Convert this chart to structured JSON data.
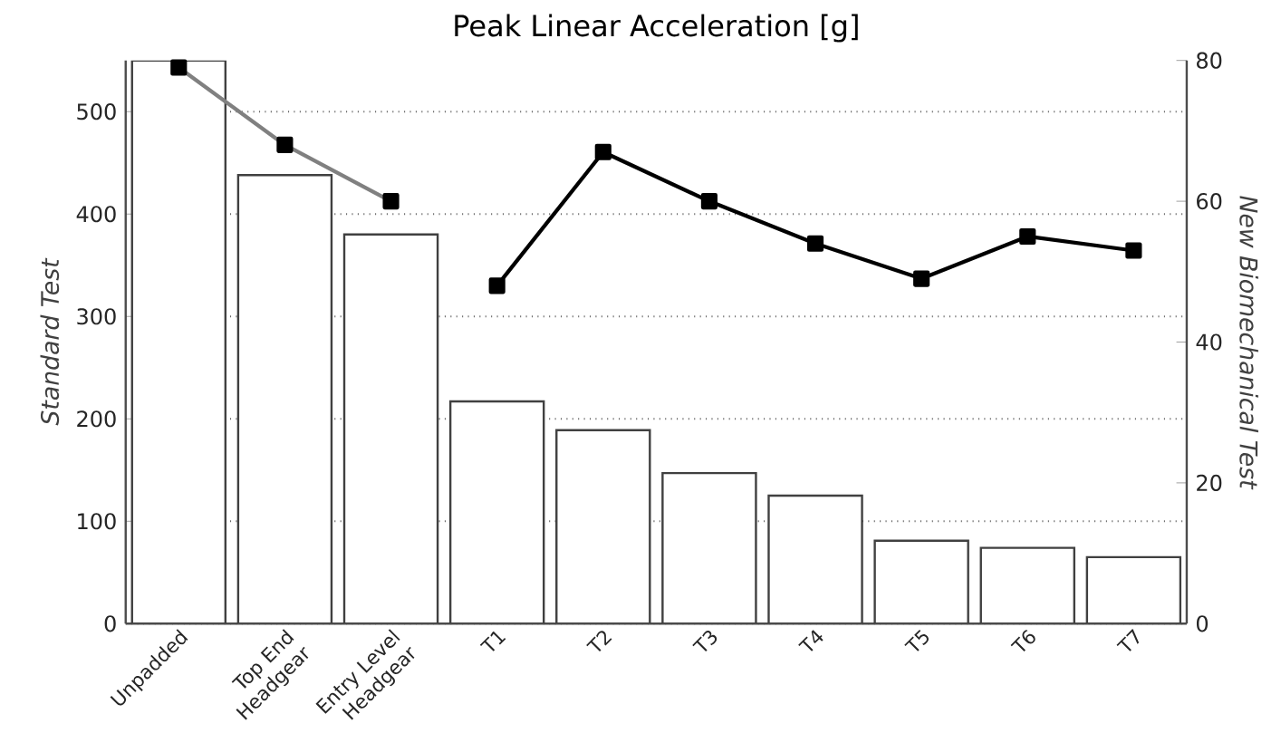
{
  "chart_data": {
    "type": "bar",
    "title": "Peak Linear Acceleration [g]",
    "ylabel": "Standard Test",
    "y2label": "New Biomechanical Test",
    "categories": [
      "Unpadded",
      "Top End Headgear",
      "Entry Level Headgear",
      "T1",
      "T2",
      "T3",
      "T4",
      "T5",
      "T6",
      "T7"
    ],
    "series": [
      {
        "color": "#ffffff",
        "values": [
          550,
          438,
          380,
          217,
          189,
          147,
          125,
          81,
          74,
          65
        ]
      },
      {
        "type": "line",
        "axis": "y2",
        "color": "#808080",
        "values": [
          79,
          68,
          60,
          null,
          null,
          null,
          null,
          null,
          null,
          null
        ]
      },
      {
        "type": "line",
        "axis": "y2",
        "color": "#000000",
        "values": [
          null,
          null,
          null,
          48,
          67,
          60,
          54,
          49,
          55,
          53
        ]
      }
    ],
    "ylim": [
      0,
      550
    ],
    "yticks": [
      0,
      100,
      200,
      300,
      400,
      500
    ],
    "y2lim": [
      0,
      80
    ],
    "y2ticks": [
      0,
      20,
      40,
      60,
      80
    ],
    "grid": "y",
    "marker": "square",
    "line_style": "solid"
  }
}
